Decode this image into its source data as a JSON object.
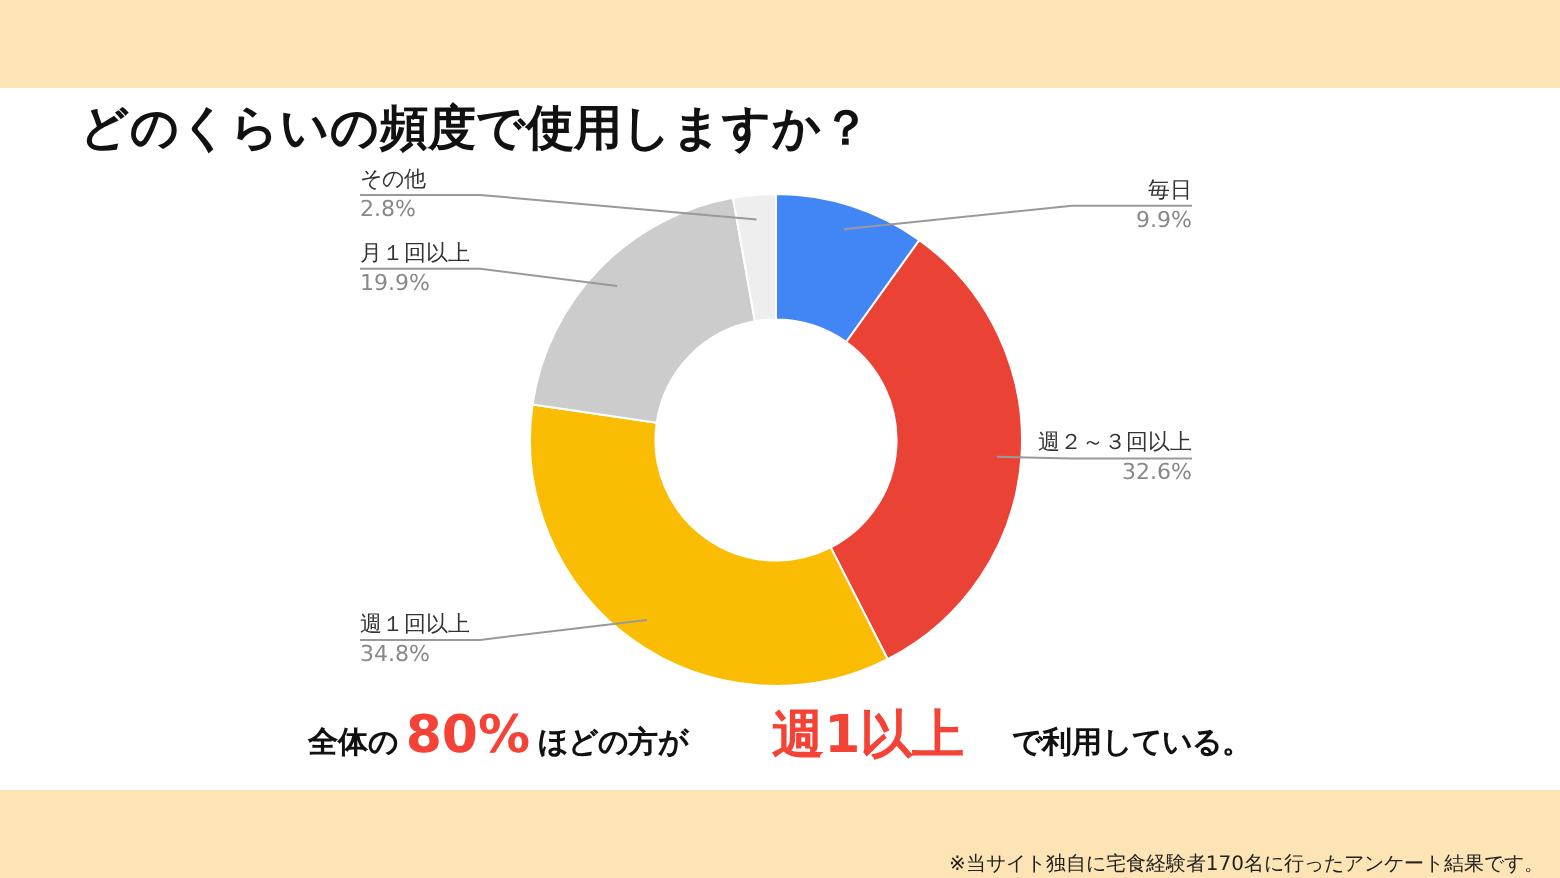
{
  "chart_data": {
    "type": "donut",
    "title": "どのくらいの頻度で使用しますか？",
    "categories": [
      "毎日",
      "週２～３回以上",
      "週１回以上",
      "月１回以上",
      "その他"
    ],
    "values": [
      9.9,
      32.6,
      34.8,
      19.9,
      2.8
    ],
    "value_labels": [
      "9.9%",
      "32.6%",
      "34.8%",
      "19.9%",
      "2.8%"
    ],
    "colors": [
      "#4285f4",
      "#ea4335",
      "#fbbc04",
      "#cccccc",
      "#eeeeee"
    ],
    "annotations": [
      "全体の",
      "80%",
      "ほどの方が",
      "週1以上",
      "で利用している。",
      "※当サイト独自に宅食経験者170名に行ったアンケート結果です。"
    ]
  }
}
